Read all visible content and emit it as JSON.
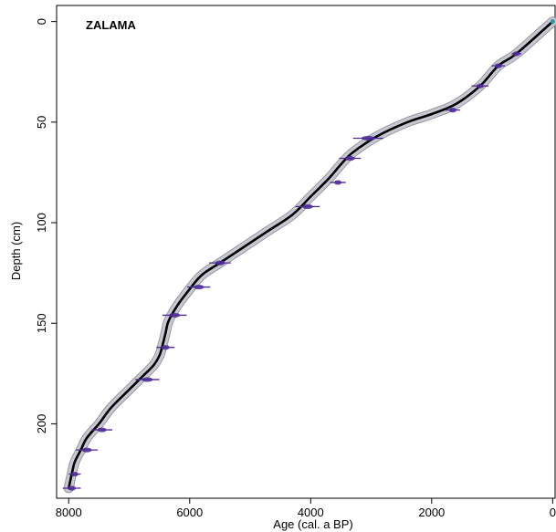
{
  "chart_data": {
    "type": "line",
    "title": "ZALAMA",
    "xlabel": "Age (cal. a BP)",
    "ylabel": "Depth (cm)",
    "xlim": [
      8200,
      -40
    ],
    "ylim": [
      -8,
      237
    ],
    "x_ticks": [
      8000,
      6000,
      4000,
      2000,
      0
    ],
    "y_ticks": [
      0,
      50,
      100,
      150,
      200
    ],
    "grid": false,
    "series": [
      {
        "role": "age-depth-model",
        "x": [
          0,
          600,
          900,
          1200,
          1600,
          2000,
          2400,
          2900,
          3300,
          3500,
          3700,
          4000,
          4300,
          4700,
          5000,
          5300,
          5500,
          5800,
          6000,
          6200,
          6350,
          6400,
          6450,
          6500,
          6600,
          6800,
          7000,
          7300,
          7500,
          7700,
          7800,
          7900,
          7950,
          8000
        ],
        "y": [
          0,
          16,
          22,
          32,
          41,
          46,
          50,
          57,
          65,
          71,
          78,
          87,
          96,
          104,
          110,
          116,
          120,
          126,
          133,
          141,
          149,
          155,
          161,
          166,
          171,
          177,
          183,
          192,
          200,
          207,
          213,
          219,
          225,
          232
        ]
      }
    ],
    "dates": {
      "age": [
        600,
        900,
        1200,
        1650,
        3050,
        3350,
        3550,
        4050,
        5500,
        5850,
        6250,
        6400,
        6700,
        7450,
        7700,
        7900,
        7950
      ],
      "depth": [
        16,
        22,
        32,
        44,
        58,
        68,
        80,
        92,
        120,
        132,
        146,
        162,
        178,
        203,
        213,
        225,
        232
      ],
      "error": [
        80,
        110,
        140,
        120,
        250,
        180,
        130,
        200,
        180,
        190,
        200,
        150,
        200,
        170,
        180,
        100,
        150
      ]
    },
    "surface_point": {
      "age": 0,
      "depth": 0
    },
    "colors": {
      "model": "#000000",
      "envelope": "#c8c8d2",
      "envelope_edge": "#8c8c98",
      "dates": "#4b2a96",
      "surface": "#2a9a9a"
    }
  }
}
